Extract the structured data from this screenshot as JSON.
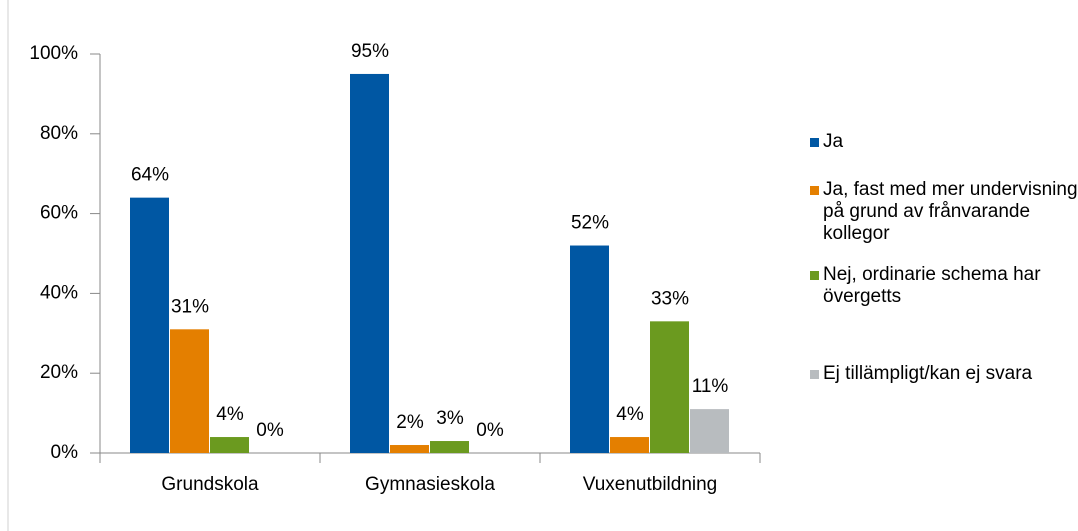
{
  "chart_data": {
    "type": "bar",
    "categories": [
      "Grundskola",
      "Gymnasieskola",
      "Vuxenutbildning"
    ],
    "series": [
      {
        "name": "Ja",
        "color": "#0057a3",
        "values": [
          64,
          95,
          52
        ],
        "value_labels": [
          "64%",
          "95%",
          "52%"
        ]
      },
      {
        "name": "Ja, fast med mer undervisning på grund av frånvarande kollegor",
        "color": "#e47f00",
        "values": [
          31,
          2,
          4
        ],
        "value_labels": [
          "31%",
          "2%",
          "4%"
        ]
      },
      {
        "name": "Nej, ordinarie schema har övergetts",
        "color": "#6b9a1f",
        "values": [
          4,
          3,
          33
        ],
        "value_labels": [
          "4%",
          "3%",
          "33%"
        ]
      },
      {
        "name": "Ej tillämpligt/kan ej svara",
        "color": "#b8bcbf",
        "values": [
          0,
          0,
          11
        ],
        "value_labels": [
          "0%",
          "0%",
          "11%"
        ]
      }
    ],
    "ylim": [
      0,
      100
    ],
    "yticks": [
      {
        "value": 0,
        "label": "0%"
      },
      {
        "value": 20,
        "label": "20%"
      },
      {
        "value": 40,
        "label": "40%"
      },
      {
        "value": 60,
        "label": "60%"
      },
      {
        "value": 80,
        "label": "80%"
      },
      {
        "value": 100,
        "label": "100%"
      }
    ],
    "grid": false,
    "legend": "right"
  }
}
